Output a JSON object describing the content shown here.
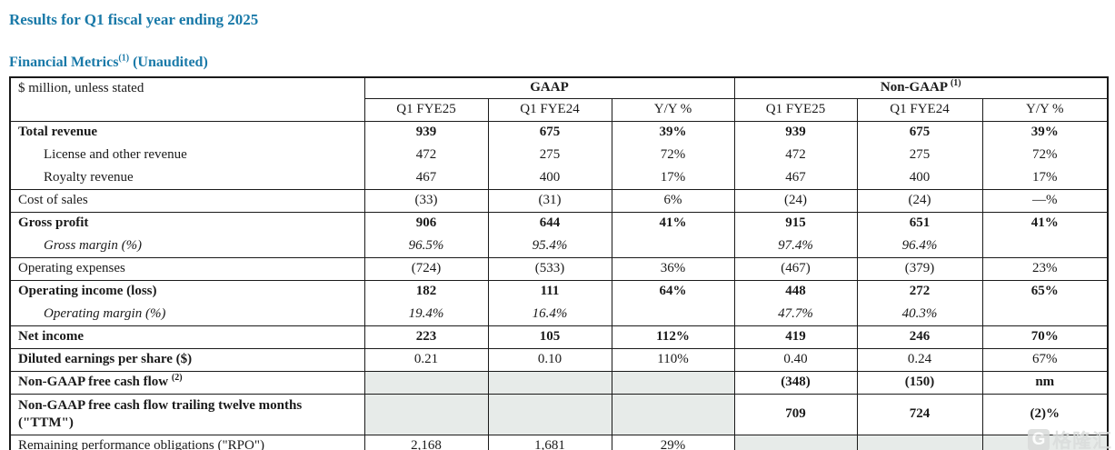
{
  "page": {
    "title": "Results for Q1 fiscal year ending 2025",
    "subtitle_text": "Financial Metrics",
    "subtitle_sup": "(1)",
    "subtitle_suffix": "(Unaudited)"
  },
  "colors": {
    "accent_teal": "#1979a8",
    "shaded_cell": "#e7ebe9",
    "border": "#1a1a1a"
  },
  "table": {
    "unit_label": "$ million, unless stated",
    "group_headers": [
      {
        "label": "GAAP",
        "sup": ""
      },
      {
        "label": "Non-GAAP",
        "sup": "(1)"
      }
    ],
    "column_headers": [
      "Q1 FYE25",
      "Q1 FYE24",
      "Y/Y %",
      "Q1 FYE25",
      "Q1 FYE24",
      "Y/Y %"
    ],
    "rows": [
      {
        "label": "Total revenue",
        "sup": "",
        "bold": true,
        "italic": false,
        "indent": false,
        "group_start": true,
        "tall": false,
        "value_bold": true,
        "shaded": null,
        "values": [
          "939",
          "675",
          "39%",
          "939",
          "675",
          "39%"
        ]
      },
      {
        "label": "License and other revenue",
        "sup": "",
        "bold": false,
        "italic": false,
        "indent": true,
        "group_start": false,
        "tall": false,
        "value_bold": false,
        "shaded": null,
        "values": [
          "472",
          "275",
          "72%",
          "472",
          "275",
          "72%"
        ]
      },
      {
        "label": "Royalty revenue",
        "sup": "",
        "bold": false,
        "italic": false,
        "indent": true,
        "group_start": false,
        "tall": false,
        "value_bold": false,
        "shaded": null,
        "values": [
          "467",
          "400",
          "17%",
          "467",
          "400",
          "17%"
        ]
      },
      {
        "label": "Cost of sales",
        "sup": "",
        "bold": false,
        "italic": false,
        "indent": false,
        "group_start": true,
        "tall": false,
        "value_bold": false,
        "shaded": null,
        "values": [
          "(33)",
          "(31)",
          "6%",
          "(24)",
          "(24)",
          "—%"
        ]
      },
      {
        "label": "Gross profit",
        "sup": "",
        "bold": true,
        "italic": false,
        "indent": false,
        "group_start": true,
        "tall": false,
        "value_bold": true,
        "shaded": null,
        "values": [
          "906",
          "644",
          "41%",
          "915",
          "651",
          "41%"
        ]
      },
      {
        "label": "Gross margin (%)",
        "sup": "",
        "bold": false,
        "italic": true,
        "indent": true,
        "group_start": false,
        "tall": false,
        "value_bold": false,
        "shaded": null,
        "values": [
          "96.5%",
          "95.4%",
          "",
          "97.4%",
          "96.4%",
          ""
        ]
      },
      {
        "label": "Operating expenses",
        "sup": "",
        "bold": false,
        "italic": false,
        "indent": false,
        "group_start": true,
        "tall": false,
        "value_bold": false,
        "shaded": null,
        "values": [
          "(724)",
          "(533)",
          "36%",
          "(467)",
          "(379)",
          "23%"
        ]
      },
      {
        "label": "Operating income (loss)",
        "sup": "",
        "bold": true,
        "italic": false,
        "indent": false,
        "group_start": true,
        "tall": false,
        "value_bold": true,
        "shaded": null,
        "values": [
          "182",
          "111",
          "64%",
          "448",
          "272",
          "65%"
        ]
      },
      {
        "label": "Operating margin (%)",
        "sup": "",
        "bold": false,
        "italic": true,
        "indent": true,
        "group_start": false,
        "tall": false,
        "value_bold": false,
        "shaded": null,
        "values": [
          "19.4%",
          "16.4%",
          "",
          "47.7%",
          "40.3%",
          ""
        ]
      },
      {
        "label": "Net income",
        "sup": "",
        "bold": true,
        "italic": false,
        "indent": false,
        "group_start": true,
        "tall": false,
        "value_bold": true,
        "shaded": null,
        "values": [
          "223",
          "105",
          "112%",
          "419",
          "246",
          "70%"
        ]
      },
      {
        "label": "Diluted earnings per share ($)",
        "sup": "",
        "bold": true,
        "italic": false,
        "indent": false,
        "group_start": true,
        "tall": false,
        "value_bold": false,
        "shaded": null,
        "values": [
          "0.21",
          "0.10",
          "110%",
          "0.40",
          "0.24",
          "67%"
        ]
      },
      {
        "label": "Non-GAAP free cash flow",
        "sup": "(2)",
        "bold": true,
        "italic": false,
        "indent": false,
        "group_start": true,
        "tall": false,
        "value_bold": true,
        "shaded": "gaap",
        "values": [
          "",
          "",
          "",
          "(348)",
          "(150)",
          "nm"
        ]
      },
      {
        "label": "Non-GAAP free cash flow trailing twelve months (\"TTM\")",
        "sup": "",
        "bold": true,
        "italic": false,
        "indent": false,
        "group_start": true,
        "tall": true,
        "value_bold": true,
        "shaded": "gaap",
        "values": [
          "",
          "",
          "",
          "709",
          "724",
          "(2)%"
        ]
      },
      {
        "label": "Remaining performance obligations (\"RPO\")",
        "sup": "",
        "bold": false,
        "italic": false,
        "indent": false,
        "group_start": true,
        "tall": false,
        "value_bold": false,
        "shaded": "nongaap",
        "values": [
          "2,168",
          "1,681",
          "29%",
          "",
          "",
          ""
        ]
      }
    ]
  },
  "watermark": {
    "logo_letter": "G",
    "text": "格隆汇"
  }
}
